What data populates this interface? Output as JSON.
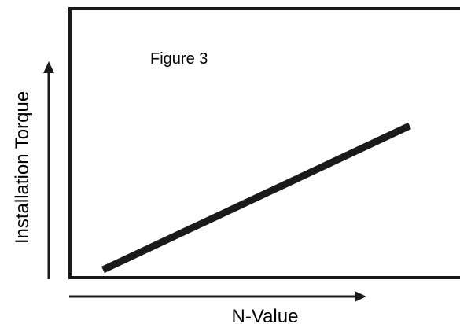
{
  "chart_data": {
    "type": "line",
    "title": "Figure 3",
    "xlabel": "N-Value",
    "ylabel": "Installation Torque",
    "grid": false,
    "axis_ticks": false,
    "axis_arrows": true,
    "series": [
      {
        "points": [
          {
            "x": 0.0,
            "y": 0.0
          },
          {
            "x": 1.0,
            "y": 1.0
          }
        ]
      }
    ],
    "xlim": [
      0,
      1
    ],
    "ylim": [
      0,
      1
    ]
  },
  "colors": {
    "line": "#1a1a1a",
    "frame": "#1a1a1a",
    "background": "#ffffff"
  }
}
